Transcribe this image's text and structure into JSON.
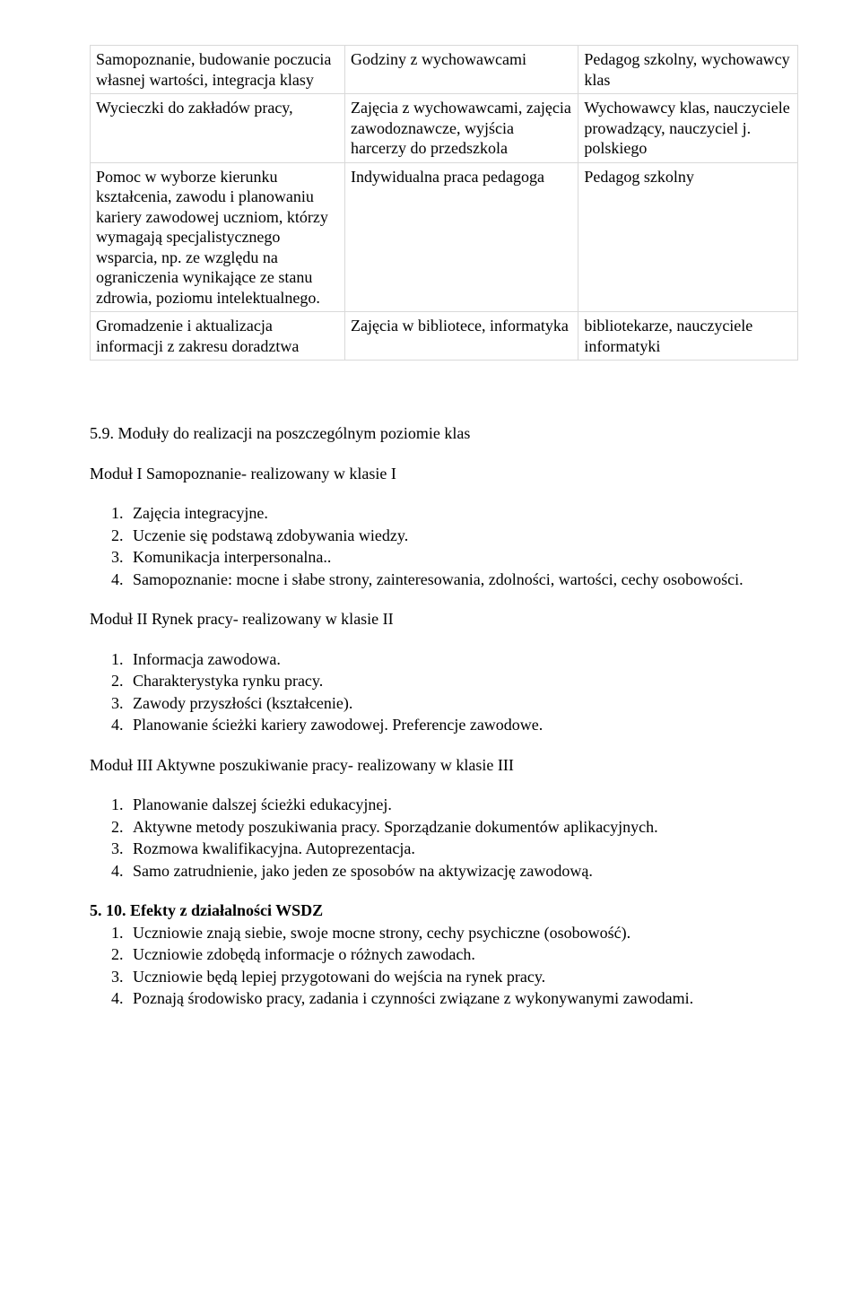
{
  "table": {
    "rows": [
      {
        "c1": "Samopoznanie, budowanie poczucia własnej wartości, integracja klasy",
        "c2": "Godziny z wychowawcami",
        "c3": "Pedagog szkolny, wychowawcy klas"
      },
      {
        "c1": "Wycieczki do zakładów pracy,",
        "c2": "Zajęcia z wychowawcami, zajęcia zawodoznawcze, wyjścia harcerzy do przedszkola",
        "c3": "Wychowawcy klas, nauczyciele prowadzący, nauczyciel j. polskiego"
      },
      {
        "c1": "Pomoc w wyborze kierunku kształcenia, zawodu i planowaniu kariery zawodowej uczniom, którzy wymagają specjalistycznego wsparcia, np. ze względu na ograniczenia wynikające ze stanu zdrowia, poziomu intelektualnego.",
        "c2": "Indywidualna praca pedagoga",
        "c3": "Pedagog szkolny"
      },
      {
        "c1": "Gromadzenie i aktualizacja informacji z zakresu doradztwa",
        "c2": "Zajęcia w bibliotece, informatyka",
        "c3": "bibliotekarze, nauczyciele informatyki"
      }
    ]
  },
  "section59_title": "5.9.  Moduły do realizacji na poszczególnym poziomie klas",
  "module1": {
    "title": "Moduł I  Samopoznanie- realizowany w klasie I",
    "items": [
      "Zajęcia integracyjne.",
      "Uczenie się podstawą zdobywania wiedzy.",
      "Komunikacja interpersonalna..",
      "Samopoznanie: mocne i słabe strony, zainteresowania, zdolności, wartości, cechy osobowości."
    ]
  },
  "module2": {
    "title": "Moduł II  Rynek pracy- realizowany w klasie II",
    "items": [
      "Informacja zawodowa.",
      "Charakterystyka rynku pracy.",
      "Zawody przyszłości (kształcenie).",
      "Planowanie ścieżki kariery zawodowej. Preferencje zawodowe."
    ]
  },
  "module3": {
    "title": "Moduł III  Aktywne poszukiwanie pracy- realizowany w klasie III",
    "items": [
      "Planowanie dalszej ścieżki edukacyjnej.",
      "Aktywne metody poszukiwania pracy. Sporządzanie dokumentów aplikacyjnych.",
      "Rozmowa kwalifikacyjna. Autoprezentacja.",
      "Samo zatrudnienie, jako jeden ze sposobów na aktywizację zawodową."
    ]
  },
  "section510": {
    "title": "5. 10. Efekty z działalności WSDZ",
    "items": [
      "Uczniowie znają siebie, swoje mocne strony, cechy psychiczne (osobowość).",
      "Uczniowie zdobędą informacje o różnych zawodach.",
      "Uczniowie będą lepiej przygotowani do wejścia na rynek pracy.",
      "Poznają środowisko pracy, zadania i czynności związane z wykonywanymi zawodami."
    ]
  }
}
